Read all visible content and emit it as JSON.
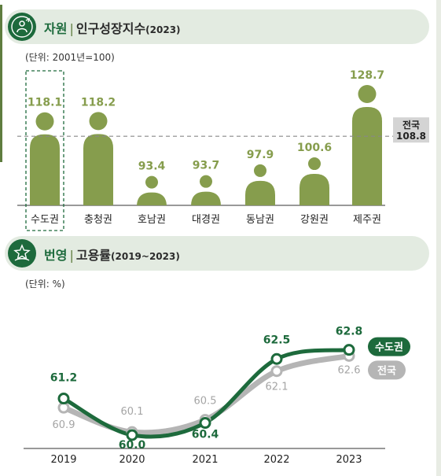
{
  "panel1": {
    "category": "자원",
    "title": "인구성장지수",
    "year": "(2023)",
    "unit": "(단위: 2001년=100)"
  },
  "panel2": {
    "category": "번영",
    "title": "고용률",
    "year": "(2019~2023)",
    "unit": "(단위: %)"
  },
  "colors": {
    "bar": "#869d4d",
    "value_label": "#869d4d",
    "capital_line": "#1d6a3c",
    "national_line": "#b5b5b5",
    "national_label": "#a5a5a5",
    "pill_bg": "#e3ebe1",
    "ref_line": "#888888"
  },
  "chart_data": [
    {
      "type": "bar",
      "categories": [
        "수도권",
        "충청권",
        "호남권",
        "대경권",
        "동남권",
        "강원권",
        "제주권"
      ],
      "values": [
        118.1,
        118.2,
        93.4,
        93.7,
        97.9,
        100.6,
        128.7
      ],
      "value_labels": [
        "118.1",
        "118.2",
        "93.4",
        "93.7",
        "97.9",
        "100.6",
        "128.7"
      ],
      "highlight": "수도권",
      "reference": {
        "name": "전국",
        "value": 108.8,
        "label": "108.8",
        "style": "dashed"
      },
      "ylim": [
        80,
        135
      ]
    },
    {
      "type": "line",
      "x": [
        "2019",
        "2020",
        "2021",
        "2022",
        "2023"
      ],
      "series": [
        {
          "name": "수도권",
          "values": [
            61.2,
            60.0,
            60.4,
            62.5,
            62.8
          ],
          "labels": [
            "61.2",
            "60.0",
            "60.4",
            "62.5",
            "62.8"
          ]
        },
        {
          "name": "전국",
          "values": [
            60.9,
            60.1,
            60.5,
            62.1,
            62.6
          ],
          "labels": [
            "60.9",
            "60.1",
            "60.5",
            "62.1",
            "62.6"
          ]
        }
      ],
      "ylim": [
        59.5,
        63.2
      ]
    }
  ]
}
